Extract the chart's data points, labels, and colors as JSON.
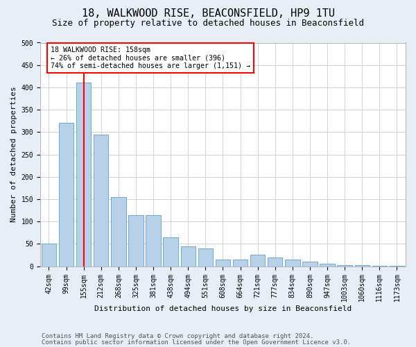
{
  "title_line1": "18, WALKWOOD RISE, BEACONSFIELD, HP9 1TU",
  "title_line2": "Size of property relative to detached houses in Beaconsfield",
  "xlabel": "Distribution of detached houses by size in Beaconsfield",
  "ylabel": "Number of detached properties",
  "footer_line1": "Contains HM Land Registry data © Crown copyright and database right 2024.",
  "footer_line2": "Contains public sector information licensed under the Open Government Licence v3.0.",
  "categories": [
    "42sqm",
    "99sqm",
    "155sqm",
    "212sqm",
    "268sqm",
    "325sqm",
    "381sqm",
    "438sqm",
    "494sqm",
    "551sqm",
    "608sqm",
    "664sqm",
    "721sqm",
    "777sqm",
    "834sqm",
    "890sqm",
    "947sqm",
    "1003sqm",
    "1060sqm",
    "1116sqm",
    "1173sqm"
  ],
  "values": [
    50,
    320,
    410,
    295,
    155,
    115,
    115,
    65,
    45,
    40,
    15,
    15,
    25,
    20,
    15,
    10,
    5,
    3,
    2,
    1,
    1
  ],
  "bar_color": "#b8d0e8",
  "bar_edge_color": "#6aaad4",
  "property_bar_index": 2,
  "annotation_text": "18 WALKWOOD RISE: 158sqm\n← 26% of detached houses are smaller (396)\n74% of semi-detached houses are larger (1,151) →",
  "annotation_box_color": "white",
  "annotation_box_edge_color": "red",
  "vline_color": "red",
  "ylim": [
    0,
    500
  ],
  "yticks": [
    0,
    50,
    100,
    150,
    200,
    250,
    300,
    350,
    400,
    450,
    500
  ],
  "bg_color": "#e8eef5",
  "plot_bg_color": "white",
  "grid_color": "#cccccc",
  "title_fontsize": 11,
  "subtitle_fontsize": 9,
  "ylabel_fontsize": 8,
  "xlabel_fontsize": 8,
  "tick_fontsize": 7,
  "footer_fontsize": 6.5
}
